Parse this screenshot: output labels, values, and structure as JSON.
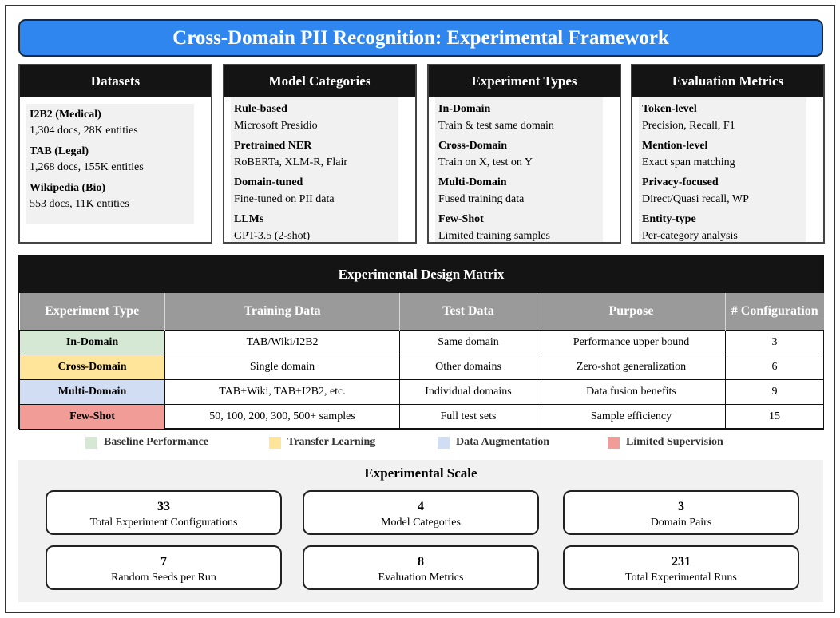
{
  "title": "Cross-Domain PII Recognition: Experimental Framework",
  "panels": [
    {
      "heading": "Datasets",
      "entries": [
        {
          "title": "I2B2 (Medical)",
          "desc": "1,304 docs, 28K entities"
        },
        {
          "title": "TAB (Legal)",
          "desc": "1,268 docs, 155K entities"
        },
        {
          "title": "Wikipedia (Bio)",
          "desc": "553 docs, 11K entities"
        }
      ]
    },
    {
      "heading": "Model Categories",
      "entries": [
        {
          "title": "Rule-based",
          "desc": "Microsoft Presidio"
        },
        {
          "title": "Pretrained NER",
          "desc": "RoBERTa, XLM-R, Flair"
        },
        {
          "title": "Domain-tuned",
          "desc": "Fine-tuned on PII data"
        },
        {
          "title": "LLMs",
          "desc": "GPT-3.5 (2-shot)"
        }
      ]
    },
    {
      "heading": "Experiment Types",
      "entries": [
        {
          "title": "In-Domain",
          "desc": "Train & test same domain"
        },
        {
          "title": "Cross-Domain",
          "desc": "Train on X, test on Y"
        },
        {
          "title": "Multi-Domain",
          "desc": "Fused training data"
        },
        {
          "title": "Few-Shot",
          "desc": "Limited training samples"
        }
      ]
    },
    {
      "heading": "Evaluation Metrics",
      "entries": [
        {
          "title": "Token-level",
          "desc": "Precision, Recall, F1"
        },
        {
          "title": "Mention-level",
          "desc": "Exact span matching"
        },
        {
          "title": "Privacy-focused",
          "desc": "Direct/Quasi recall, WP"
        },
        {
          "title": "Entity-type",
          "desc": "Per-category analysis"
        }
      ]
    }
  ],
  "matrix": {
    "heading": "Experimental Design Matrix",
    "columns": [
      "Experiment Type",
      "Training Data",
      "Test Data",
      "Purpose",
      "# Configuration"
    ],
    "rows": [
      {
        "cells": [
          "In-Domain",
          "TAB/Wiki/I2B2",
          "Same domain",
          "Performance upper bound",
          "3"
        ],
        "color": "#d5e8d4"
      },
      {
        "cells": [
          "Cross-Domain",
          "Single domain",
          "Other domains",
          "Zero-shot generalization",
          "6"
        ],
        "color": "#ffe599"
      },
      {
        "cells": [
          "Multi-Domain",
          "TAB+Wiki, TAB+I2B2, etc.",
          "Individual domains",
          "Data fusion benefits",
          "9"
        ],
        "color": "#d0ddf2"
      },
      {
        "cells": [
          "Few-Shot",
          "50, 100, 200, 300, 500+ samples",
          "Full test sets",
          "Sample efficiency",
          "15"
        ],
        "color": "#f19c96"
      }
    ]
  },
  "legend": [
    {
      "label": "Baseline Performance",
      "color": "#d5e8d4"
    },
    {
      "label": "Transfer Learning",
      "color": "#ffe599"
    },
    {
      "label": "Data Augmentation",
      "color": "#d0ddf2"
    },
    {
      "label": "Limited Supervision",
      "color": "#f19c96"
    }
  ],
  "scale": {
    "heading": "Experimental Scale",
    "stats": [
      {
        "value": "33",
        "label": "Total Experiment Configurations"
      },
      {
        "value": "4",
        "label": "Model Categories"
      },
      {
        "value": "3",
        "label": "Domain Pairs"
      },
      {
        "value": "7",
        "label": "Random Seeds per Run"
      },
      {
        "value": "8",
        "label": "Evaluation Metrics"
      },
      {
        "value": "231",
        "label": "Total Experimental Runs"
      }
    ]
  }
}
